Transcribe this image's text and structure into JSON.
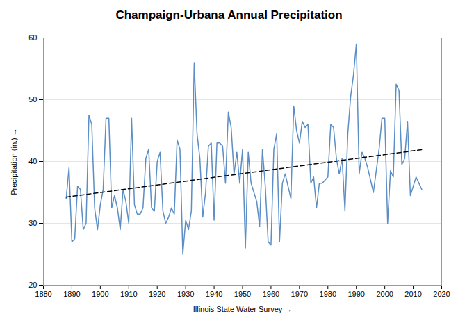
{
  "chart_data": {
    "type": "line",
    "title": "Champaign-Urbana Annual Precipitation",
    "xlabel": "Illinois State Water Survey",
    "ylabel": "Precipitation (in.)",
    "xlim": [
      1880,
      2020
    ],
    "ylim": [
      20,
      60
    ],
    "xticks": [
      1880,
      1890,
      1900,
      1910,
      1920,
      1930,
      1940,
      1950,
      1960,
      1970,
      1980,
      1990,
      2000,
      2010,
      2020
    ],
    "yticks": [
      20,
      30,
      40,
      50,
      60
    ],
    "grid": "y",
    "series": [
      {
        "color": "#5b8ec4",
        "x": [
          1888,
          1889,
          1890,
          1891,
          1892,
          1893,
          1894,
          1895,
          1896,
          1897,
          1898,
          1899,
          1900,
          1901,
          1902,
          1903,
          1904,
          1905,
          1906,
          1907,
          1908,
          1909,
          1910,
          1911,
          1912,
          1913,
          1914,
          1915,
          1916,
          1917,
          1918,
          1919,
          1920,
          1921,
          1922,
          1923,
          1924,
          1925,
          1926,
          1927,
          1928,
          1929,
          1930,
          1931,
          1932,
          1933,
          1934,
          1935,
          1936,
          1937,
          1938,
          1939,
          1940,
          1941,
          1942,
          1943,
          1944,
          1945,
          1946,
          1947,
          1948,
          1949,
          1950,
          1951,
          1952,
          1953,
          1954,
          1955,
          1956,
          1957,
          1958,
          1959,
          1960,
          1961,
          1962,
          1963,
          1964,
          1965,
          1966,
          1967,
          1968,
          1969,
          1970,
          1971,
          1972,
          1973,
          1974,
          1975,
          1976,
          1977,
          1978,
          1979,
          1980,
          1981,
          1982,
          1983,
          1984,
          1985,
          1986,
          1987,
          1988,
          1989,
          1990,
          1991,
          1992,
          1993,
          1994,
          1995,
          1996,
          1997,
          1998,
          1999,
          2000,
          2001,
          2002,
          2003,
          2004,
          2005,
          2006,
          2007,
          2008,
          2009,
          2010,
          2011,
          2012,
          2013
        ],
        "values": [
          34.0,
          39.0,
          27.0,
          27.5,
          36.0,
          35.5,
          29.0,
          30.0,
          47.5,
          46.0,
          32.5,
          29.0,
          33.0,
          35.5,
          47.0,
          47.0,
          32.5,
          34.5,
          32.5,
          29.0,
          35.5,
          33.5,
          30.0,
          47.0,
          33.0,
          31.5,
          31.5,
          32.5,
          40.5,
          42.0,
          32.5,
          32.0,
          40.0,
          41.5,
          32.0,
          30.0,
          31.0,
          32.5,
          31.5,
          43.5,
          42.0,
          25.0,
          30.5,
          29.0,
          32.0,
          56.0,
          44.5,
          40.5,
          31.0,
          35.0,
          42.5,
          43.0,
          30.5,
          43.0,
          43.0,
          42.5,
          36.5,
          48.0,
          45.5,
          38.0,
          41.5,
          36.5,
          42.0,
          26.0,
          41.5,
          36.5,
          35.0,
          33.5,
          29.5,
          42.0,
          36.0,
          27.0,
          26.5,
          42.0,
          44.5,
          27.0,
          36.5,
          38.0,
          36.0,
          34.0,
          49.0,
          45.0,
          43.0,
          46.5,
          45.5,
          46.0,
          36.5,
          37.5,
          32.5,
          36.5,
          36.5,
          37.0,
          37.5,
          46.0,
          45.5,
          40.5,
          38.0,
          40.5,
          32.0,
          44.5,
          50.5,
          54.0,
          59.0,
          38.0,
          41.5,
          40.5,
          39.0,
          37.0,
          35.0,
          38.5,
          42.0,
          47.0,
          47.0,
          30.0,
          38.5,
          37.5,
          52.5,
          51.5,
          39.5,
          40.5,
          46.5,
          34.5,
          36.0,
          37.5,
          36.5,
          35.5
        ]
      },
      {
        "color": "black",
        "line_style": "dashed",
        "x": [
          1888,
          2013
        ],
        "values": [
          34.2546,
          41.9121
        ]
      }
    ]
  }
}
